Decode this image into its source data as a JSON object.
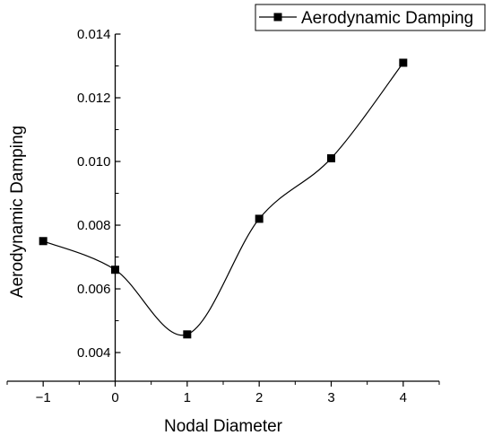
{
  "chart_data": {
    "type": "line",
    "x": [
      -1,
      0,
      1,
      2,
      3,
      4
    ],
    "series": [
      {
        "name": "Aerodynamic Damping",
        "values": [
          0.0075,
          0.0066,
          0.00457,
          0.0082,
          0.0101,
          0.0131
        ],
        "color": "#000000",
        "marker": "square",
        "smooth": true
      }
    ],
    "xlabel": "Nodal Diameter",
    "ylabel": "Aerodynamic Damping",
    "xlim": [
      -1.5,
      4.5
    ],
    "ylim": [
      0.0031,
      0.014
    ],
    "xticks": [
      -1,
      0,
      1,
      2,
      3,
      4
    ],
    "xtick_labels": [
      "−1",
      "0",
      "1",
      "2",
      "3",
      "4"
    ],
    "yticks": [
      0.004,
      0.006,
      0.008,
      0.01,
      0.012,
      0.014
    ],
    "ytick_labels": [
      "0.004",
      "0.006",
      "0.008",
      "0.010",
      "0.012",
      "0.014"
    ],
    "grid": false,
    "legend": "top-right"
  }
}
